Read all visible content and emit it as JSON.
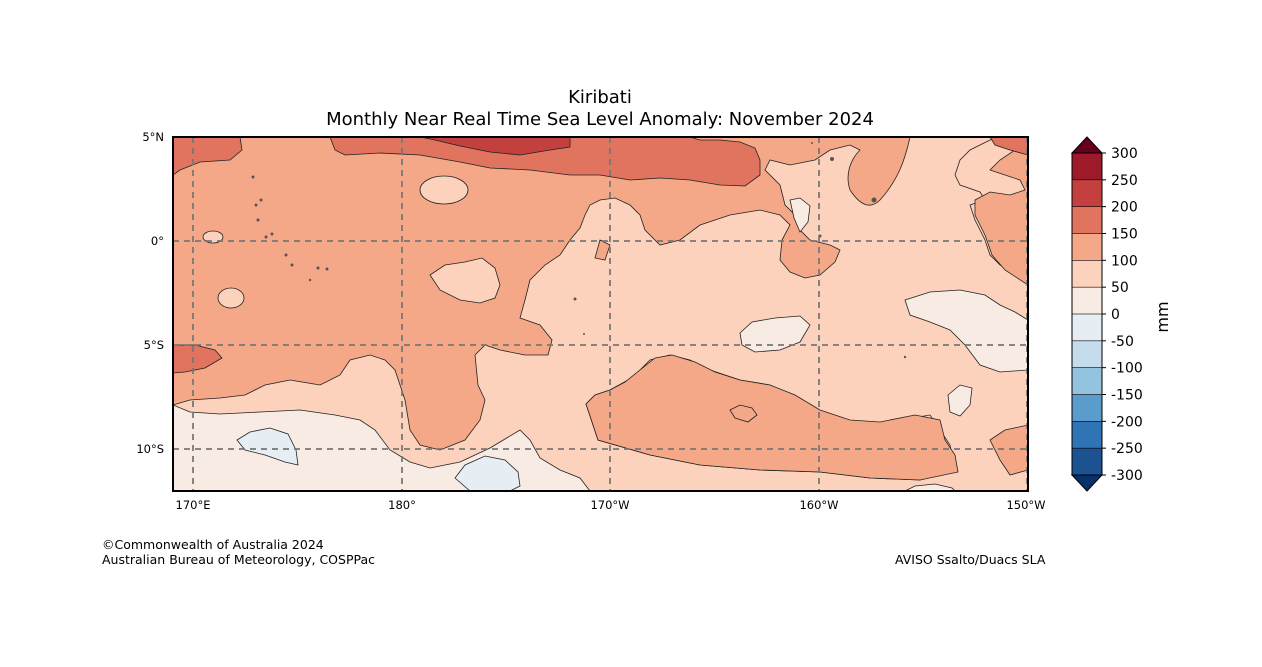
{
  "title": "Kiribati",
  "subtitle": "Monthly Near Real Time Sea Level Anomaly: November 2024",
  "latitude_labels": [
    "5°N",
    "0°",
    "5°S",
    "10°S"
  ],
  "longitude_labels": [
    "170°E",
    "180°",
    "170°W",
    "160°W",
    "150°W"
  ],
  "colorbar": {
    "unit": "mm",
    "tick_labels": [
      "300",
      "250",
      "200",
      "150",
      "100",
      "50",
      "0",
      "-50",
      "-100",
      "-150",
      "-200",
      "-250",
      "-300"
    ],
    "colors_high_to_low": [
      "#9e1a2b",
      "#c4403f",
      "#e0745e",
      "#f4a888",
      "#fcd2bd",
      "#f8ebe3",
      "#e6eef3",
      "#c4dcec",
      "#93c3de",
      "#5a9ccb",
      "#2f74b4",
      "#1c5292"
    ],
    "over_color": "#67001f",
    "under_color": "#08306b"
  },
  "credits": {
    "copyright": "©Commonwealth of Australia 2024",
    "agency": "Australian Bureau of Meteorology, COSPPac",
    "source": "AVISO Ssalto/Duacs SLA"
  }
}
